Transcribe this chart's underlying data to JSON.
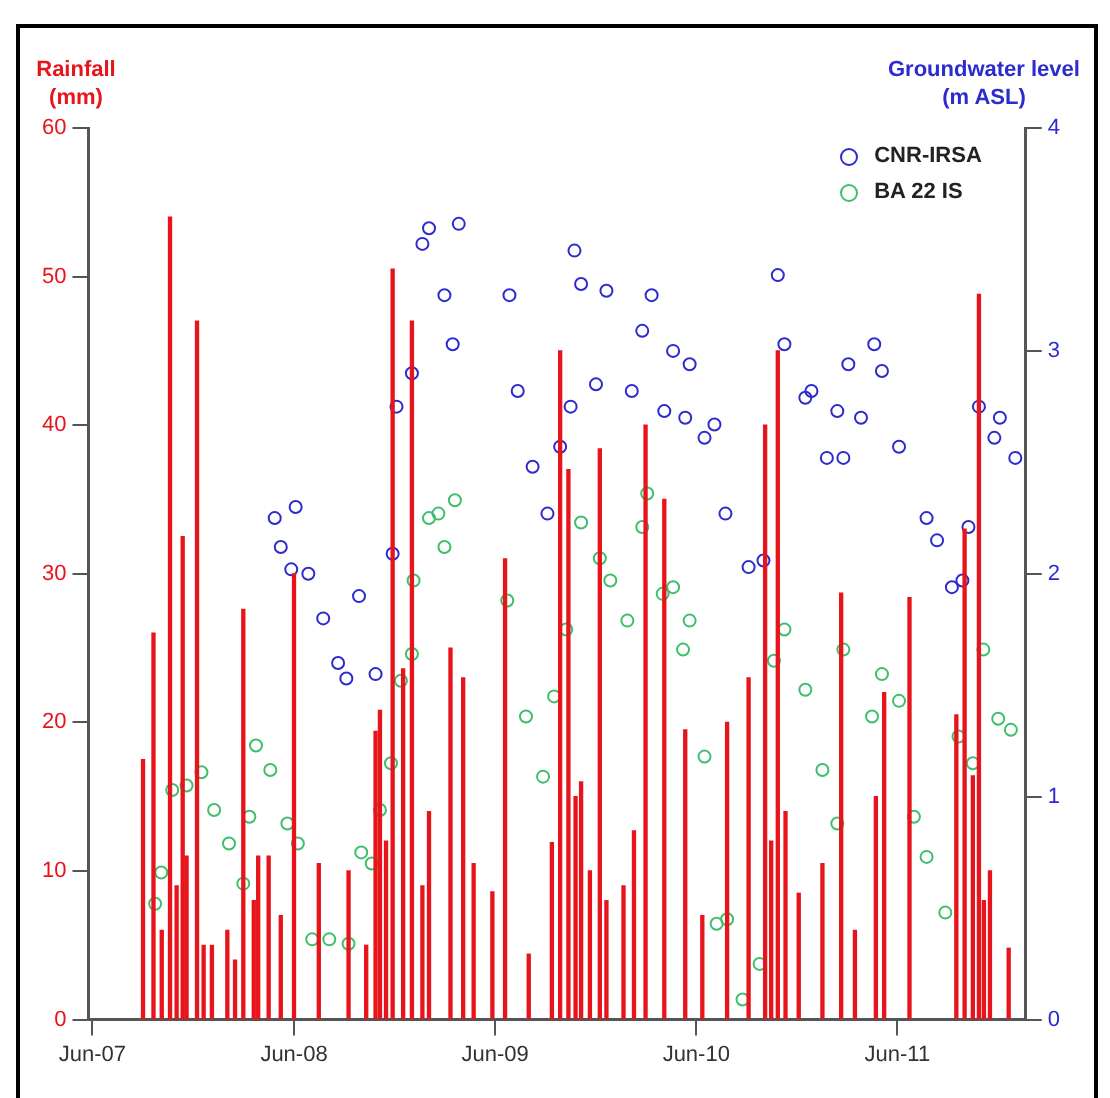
{
  "chart_data": {
    "type": "bar",
    "ylabel": "Rainfall (mm)",
    "y2label": "Groundwater level (m ASL)",
    "xlim": [
      "2007-05-25",
      "2012-01-20"
    ],
    "xticks": [
      {
        "value": "2007-06-01",
        "label": "Jun-07"
      },
      {
        "value": "2008-06-01",
        "label": "Jun-08"
      },
      {
        "value": "2009-06-01",
        "label": "Jun-09"
      },
      {
        "value": "2010-06-01",
        "label": "Jun-10"
      },
      {
        "value": "2011-06-01",
        "label": "Jun-11"
      }
    ],
    "ylim": [
      0,
      60
    ],
    "yticks": [
      0,
      10,
      20,
      30,
      40,
      50,
      60
    ],
    "y2lim": [
      0,
      4
    ],
    "y2ticks": [
      0,
      1,
      2,
      3,
      4
    ],
    "grid": false,
    "legend": "top right",
    "marker": "circle",
    "series": [
      {
        "color": "#e8141b",
        "x": [
          "2007-09-01",
          "2007-09-20",
          "2007-10-05",
          "2007-10-20",
          "2007-11-01",
          "2007-11-12",
          "2007-11-19",
          "2007-12-08",
          "2007-12-20",
          "2008-01-04",
          "2008-02-01",
          "2008-02-15",
          "2008-03-01",
          "2008-03-20",
          "2008-03-28",
          "2008-04-16",
          "2008-05-08",
          "2008-06-01",
          "2008-07-16",
          "2008-09-08",
          "2008-10-10",
          "2008-10-27",
          "2008-11-04",
          "2008-11-15",
          "2008-11-27",
          "2008-12-16",
          "2009-01-01",
          "2009-01-20",
          "2009-02-01",
          "2009-03-12",
          "2009-04-04",
          "2009-04-23",
          "2009-05-27",
          "2009-06-19",
          "2009-08-01",
          "2009-09-12",
          "2009-09-27",
          "2009-10-12",
          "2009-10-25",
          "2009-11-04",
          "2009-11-20",
          "2009-12-08",
          "2009-12-20",
          "2010-01-20",
          "2010-02-08",
          "2010-03-01",
          "2010-04-04",
          "2010-05-12",
          "2010-06-12",
          "2010-07-27",
          "2010-09-04",
          "2010-10-04",
          "2010-10-15",
          "2010-10-27",
          "2010-11-10",
          "2010-12-04",
          "2011-01-16",
          "2011-02-19",
          "2011-03-16",
          "2011-04-23",
          "2011-05-08",
          "2011-06-23",
          "2011-09-16",
          "2011-10-01",
          "2011-10-16",
          "2011-10-27",
          "2011-11-05",
          "2011-11-16",
          "2011-12-20"
        ],
        "values": [
          17.5,
          26,
          6,
          54,
          9,
          32.5,
          11,
          47,
          5,
          5,
          6,
          4,
          27.6,
          8,
          11,
          11,
          7,
          30,
          10.5,
          10,
          5,
          19.4,
          20.8,
          12,
          50.5,
          23.6,
          47,
          9,
          14,
          25,
          23,
          10.5,
          8.6,
          31,
          4.4,
          11.9,
          45,
          37,
          15,
          16,
          10,
          38.4,
          8,
          9,
          12.7,
          40,
          35,
          19.5,
          7,
          20,
          23,
          40,
          12,
          45,
          14,
          8.5,
          10.5,
          28.7,
          6,
          15,
          22,
          28.4,
          20.5,
          33,
          16.4,
          48.8,
          8,
          10,
          4.8
        ]
      },
      {
        "type": "scatter",
        "name": "CNR-IRSA",
        "color": "#2b2bd0",
        "axis": "y2",
        "x": [
          "2008-04-27",
          "2008-05-08",
          "2008-05-27",
          "2008-06-04",
          "2008-06-27",
          "2008-07-24",
          "2008-08-20",
          "2008-09-04",
          "2008-09-27",
          "2008-10-27",
          "2008-11-27",
          "2008-12-04",
          "2009-01-01",
          "2009-01-20",
          "2009-02-01",
          "2009-03-01",
          "2009-03-16",
          "2009-03-27",
          "2009-06-27",
          "2009-07-12",
          "2009-08-08",
          "2009-09-04",
          "2009-09-27",
          "2009-10-16",
          "2009-10-23",
          "2009-11-04",
          "2009-12-01",
          "2009-12-20",
          "2010-02-04",
          "2010-02-23",
          "2010-03-12",
          "2010-04-04",
          "2010-04-20",
          "2010-05-12",
          "2010-05-20",
          "2010-06-16",
          "2010-07-04",
          "2010-07-24",
          "2010-09-04",
          "2010-10-01",
          "2010-10-27",
          "2010-11-08",
          "2010-12-16",
          "2010-12-27",
          "2011-01-24",
          "2011-02-12",
          "2011-02-23",
          "2011-03-04",
          "2011-03-27",
          "2011-04-20",
          "2011-05-04",
          "2011-06-04",
          "2011-07-24",
          "2011-08-12",
          "2011-09-08",
          "2011-09-27",
          "2011-10-08",
          "2011-10-27",
          "2011-11-24",
          "2011-12-04",
          "2012-01-01"
        ],
        "values": [
          2.25,
          2.12,
          2.02,
          2.3,
          2.0,
          1.8,
          1.6,
          1.53,
          1.9,
          1.55,
          2.09,
          2.75,
          2.9,
          3.48,
          3.55,
          3.25,
          3.03,
          3.57,
          3.25,
          2.82,
          2.48,
          2.27,
          2.57,
          2.75,
          3.45,
          3.3,
          2.85,
          3.27,
          2.82,
          3.09,
          3.25,
          2.73,
          3.0,
          2.7,
          2.94,
          2.61,
          2.67,
          2.27,
          2.03,
          2.06,
          3.34,
          3.03,
          2.79,
          2.82,
          2.52,
          2.73,
          2.52,
          2.94,
          2.7,
          3.03,
          2.91,
          2.57,
          2.25,
          2.15,
          1.94,
          1.97,
          2.21,
          2.75,
          2.61,
          2.7,
          2.52
        ]
      },
      {
        "type": "scatter",
        "name": "BA 22 IS",
        "color": "#3fbf6b",
        "axis": "y2",
        "x": [
          "2007-09-23",
          "2007-10-04",
          "2007-10-24",
          "2007-11-19",
          "2007-12-16",
          "2008-01-08",
          "2008-02-04",
          "2008-03-01",
          "2008-03-12",
          "2008-03-24",
          "2008-04-19",
          "2008-05-20",
          "2008-06-08",
          "2008-07-04",
          "2008-08-04",
          "2008-09-08",
          "2008-10-01",
          "2008-10-20",
          "2008-11-04",
          "2008-11-24",
          "2008-12-12",
          "2009-01-01",
          "2009-01-04",
          "2009-02-01",
          "2009-02-18",
          "2009-03-01",
          "2009-03-20",
          "2009-06-23",
          "2009-07-27",
          "2009-08-27",
          "2009-09-16",
          "2009-10-08",
          "2009-11-04",
          "2009-12-08",
          "2009-12-27",
          "2010-01-27",
          "2010-02-23",
          "2010-03-04",
          "2010-04-01",
          "2010-04-20",
          "2010-05-08",
          "2010-05-20",
          "2010-06-16",
          "2010-07-08",
          "2010-07-27",
          "2010-08-24",
          "2010-09-24",
          "2010-10-20",
          "2010-11-08",
          "2010-12-16",
          "2011-01-16",
          "2011-02-12",
          "2011-02-23",
          "2011-04-16",
          "2011-05-04",
          "2011-06-04",
          "2011-07-01",
          "2011-07-24",
          "2011-08-27",
          "2011-09-20",
          "2011-10-16",
          "2011-11-04",
          "2011-12-01",
          "2011-12-24"
        ],
        "values": [
          0.52,
          0.66,
          1.03,
          1.05,
          1.11,
          0.94,
          0.79,
          0.61,
          0.91,
          1.23,
          1.12,
          0.88,
          0.79,
          0.36,
          0.36,
          0.34,
          0.75,
          0.7,
          0.94,
          1.15,
          1.52,
          1.64,
          1.97,
          2.25,
          2.27,
          2.12,
          2.33,
          1.88,
          1.36,
          1.09,
          1.45,
          1.75,
          2.23,
          2.07,
          1.97,
          1.79,
          2.21,
          2.36,
          1.91,
          1.94,
          1.66,
          1.79,
          1.18,
          0.43,
          0.45,
          0.09,
          0.25,
          1.61,
          1.75,
          1.48,
          1.12,
          0.88,
          1.66,
          1.36,
          1.55,
          1.43,
          0.91,
          0.73,
          0.48,
          1.27,
          1.15,
          1.66,
          1.35,
          1.3
        ]
      }
    ]
  }
}
